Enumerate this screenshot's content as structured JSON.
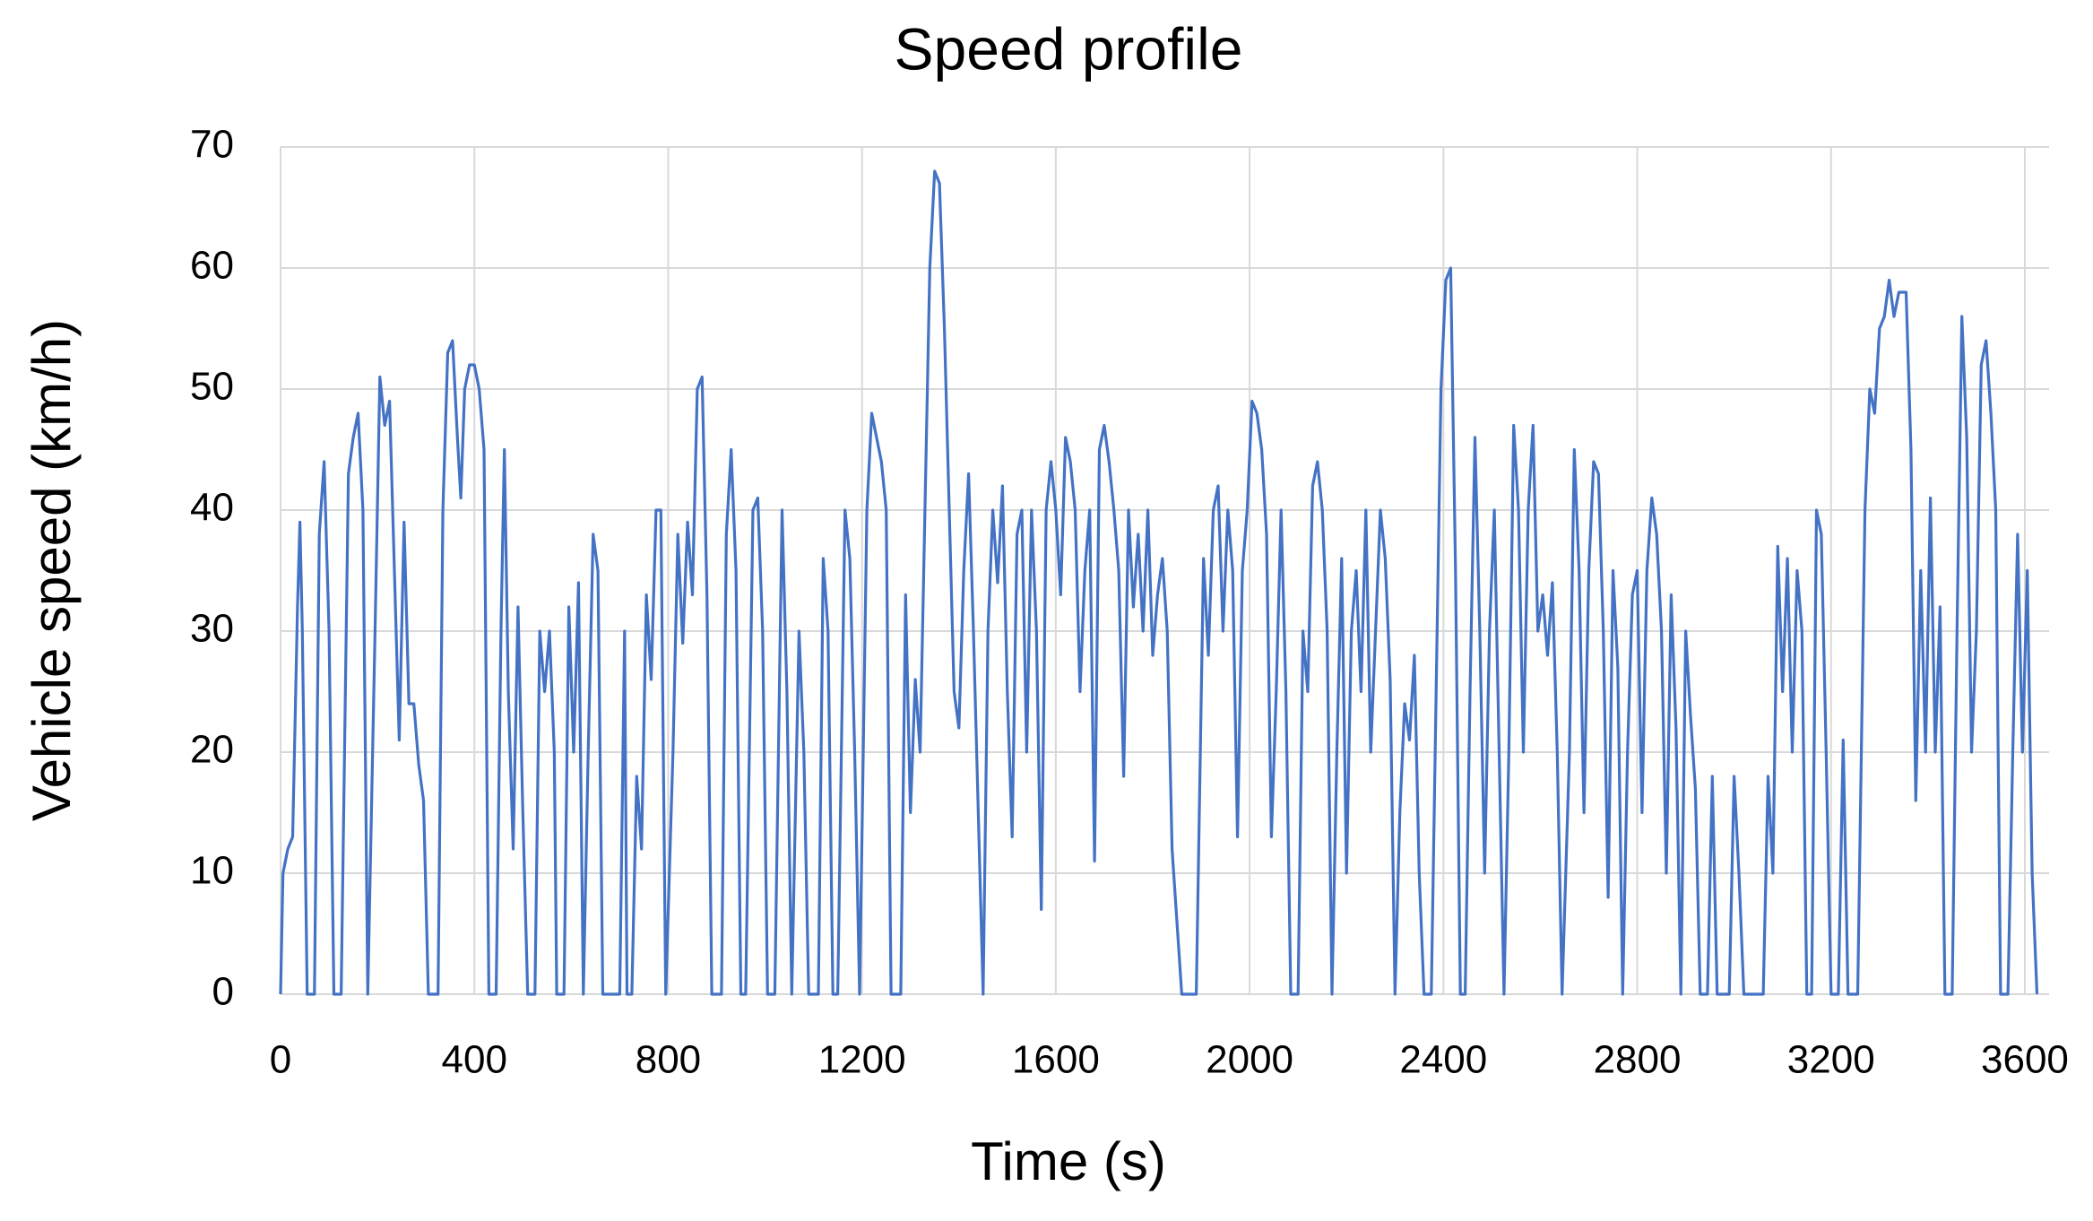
{
  "chart_data": {
    "type": "line",
    "title": "Speed profile",
    "x_label": "Time (s)",
    "y_label": "Vehicle speed (km/h)",
    "color": "#4472c4",
    "grid": true,
    "xlim": [
      0,
      3650
    ],
    "xticks": [
      0,
      400,
      800,
      1200,
      1600,
      2000,
      2400,
      2800,
      3200,
      3600
    ],
    "ylim": [
      0,
      70
    ],
    "yticks": [
      0,
      10,
      20,
      30,
      40,
      50,
      60,
      70
    ],
    "x": [
      0,
      5,
      15,
      25,
      35,
      40,
      45,
      55,
      70,
      80,
      90,
      100,
      110,
      125,
      140,
      150,
      160,
      170,
      180,
      195,
      205,
      215,
      225,
      235,
      245,
      255,
      265,
      275,
      285,
      295,
      305,
      325,
      335,
      345,
      355,
      365,
      372,
      380,
      390,
      400,
      410,
      420,
      430,
      445,
      455,
      462,
      470,
      480,
      490,
      500,
      510,
      525,
      535,
      545,
      555,
      565,
      570,
      585,
      595,
      605,
      615,
      625,
      635,
      645,
      655,
      665,
      700,
      710,
      715,
      725,
      735,
      745,
      755,
      765,
      775,
      785,
      795,
      810,
      820,
      830,
      840,
      850,
      860,
      870,
      880,
      890,
      910,
      920,
      930,
      940,
      950,
      960,
      975,
      985,
      995,
      1005,
      1020,
      1035,
      1045,
      1055,
      1070,
      1080,
      1090,
      1110,
      1120,
      1130,
      1140,
      1150,
      1165,
      1175,
      1185,
      1195,
      1210,
      1220,
      1230,
      1240,
      1250,
      1260,
      1280,
      1290,
      1300,
      1310,
      1320,
      1330,
      1340,
      1350,
      1360,
      1370,
      1380,
      1390,
      1400,
      1410,
      1420,
      1430,
      1440,
      1450,
      1460,
      1470,
      1480,
      1490,
      1500,
      1510,
      1520,
      1530,
      1540,
      1550,
      1560,
      1570,
      1580,
      1590,
      1600,
      1610,
      1620,
      1630,
      1640,
      1650,
      1660,
      1670,
      1680,
      1690,
      1700,
      1710,
      1720,
      1730,
      1740,
      1750,
      1760,
      1770,
      1780,
      1790,
      1800,
      1810,
      1820,
      1830,
      1840,
      1850,
      1860,
      1890,
      1905,
      1915,
      1925,
      1935,
      1945,
      1955,
      1965,
      1975,
      1985,
      1995,
      2005,
      2015,
      2025,
      2035,
      2045,
      2055,
      2065,
      2075,
      2085,
      2100,
      2110,
      2120,
      2130,
      2140,
      2150,
      2160,
      2170,
      2180,
      2190,
      2200,
      2210,
      2220,
      2230,
      2240,
      2250,
      2260,
      2270,
      2280,
      2290,
      2300,
      2310,
      2320,
      2330,
      2340,
      2350,
      2360,
      2375,
      2385,
      2395,
      2405,
      2415,
      2425,
      2435,
      2445,
      2455,
      2465,
      2475,
      2485,
      2495,
      2505,
      2515,
      2525,
      2535,
      2545,
      2555,
      2565,
      2575,
      2585,
      2595,
      2605,
      2615,
      2625,
      2635,
      2645,
      2660,
      2670,
      2680,
      2690,
      2700,
      2710,
      2720,
      2730,
      2740,
      2750,
      2760,
      2770,
      2780,
      2790,
      2800,
      2810,
      2820,
      2830,
      2840,
      2850,
      2860,
      2870,
      2880,
      2890,
      2900,
      2910,
      2920,
      2930,
      2945,
      2955,
      2965,
      2990,
      3000,
      3010,
      3020,
      3060,
      3070,
      3080,
      3090,
      3100,
      3110,
      3120,
      3130,
      3140,
      3150,
      3160,
      3170,
      3180,
      3190,
      3200,
      3215,
      3225,
      3235,
      3255,
      3270,
      3280,
      3290,
      3300,
      3310,
      3320,
      3330,
      3340,
      3355,
      3365,
      3375,
      3385,
      3395,
      3405,
      3415,
      3425,
      3435,
      3450,
      3460,
      3470,
      3480,
      3490,
      3500,
      3510,
      3520,
      3530,
      3540,
      3550,
      3565,
      3575,
      3585,
      3595,
      3605,
      3615,
      3625
    ],
    "values": [
      0,
      10,
      12,
      13,
      32,
      39,
      30,
      0,
      0,
      38,
      44,
      30,
      0,
      0,
      43,
      46,
      48,
      40,
      0,
      30,
      51,
      47,
      49,
      35,
      21,
      39,
      24,
      24,
      19,
      16,
      0,
      0,
      40,
      53,
      54,
      46,
      41,
      50,
      52,
      52,
      50,
      45,
      0,
      0,
      30,
      45,
      25,
      12,
      32,
      15,
      0,
      0,
      30,
      25,
      30,
      20,
      0,
      0,
      32,
      20,
      34,
      0,
      20,
      38,
      35,
      0,
      0,
      30,
      0,
      0,
      18,
      12,
      33,
      26,
      40,
      40,
      0,
      20,
      38,
      29,
      39,
      33,
      50,
      51,
      33,
      0,
      0,
      38,
      45,
      35,
      0,
      0,
      40,
      41,
      30,
      0,
      0,
      40,
      25,
      0,
      30,
      20,
      0,
      0,
      36,
      30,
      0,
      0,
      40,
      36,
      20,
      0,
      40,
      48,
      46,
      44,
      40,
      0,
      0,
      33,
      15,
      26,
      20,
      40,
      60,
      68,
      67,
      55,
      40,
      25,
      22,
      35,
      43,
      30,
      15,
      0,
      30,
      40,
      34,
      42,
      25,
      13,
      38,
      40,
      20,
      40,
      30,
      7,
      40,
      44,
      40,
      33,
      46,
      44,
      40,
      25,
      35,
      40,
      11,
      45,
      47,
      44,
      40,
      35,
      18,
      40,
      32,
      38,
      30,
      40,
      28,
      33,
      36,
      30,
      12,
      6,
      0,
      0,
      36,
      28,
      40,
      42,
      30,
      40,
      35,
      13,
      35,
      40,
      49,
      48,
      45,
      38,
      13,
      25,
      40,
      25,
      0,
      0,
      30,
      25,
      42,
      44,
      40,
      30,
      0,
      20,
      36,
      10,
      30,
      35,
      25,
      40,
      20,
      30,
      40,
      36,
      26,
      0,
      15,
      24,
      21,
      28,
      10,
      0,
      0,
      25,
      50,
      59,
      60,
      35,
      0,
      0,
      25,
      46,
      30,
      10,
      30,
      40,
      20,
      0,
      20,
      47,
      40,
      20,
      40,
      47,
      30,
      33,
      28,
      34,
      20,
      0,
      20,
      45,
      35,
      15,
      35,
      44,
      43,
      30,
      8,
      35,
      27,
      0,
      20,
      33,
      35,
      15,
      35,
      41,
      38,
      30,
      10,
      33,
      22,
      0,
      30,
      23,
      17,
      0,
      0,
      18,
      0,
      0,
      18,
      10,
      0,
      0,
      18,
      10,
      37,
      25,
      36,
      20,
      35,
      30,
      0,
      0,
      40,
      38,
      20,
      0,
      0,
      21,
      0,
      0,
      40,
      50,
      48,
      55,
      56,
      59,
      56,
      58,
      58,
      45,
      16,
      35,
      20,
      41,
      20,
      32,
      0,
      0,
      30,
      56,
      46,
      20,
      30,
      52,
      54,
      48,
      40,
      0,
      0,
      20,
      38,
      20,
      35,
      10,
      0
    ]
  }
}
